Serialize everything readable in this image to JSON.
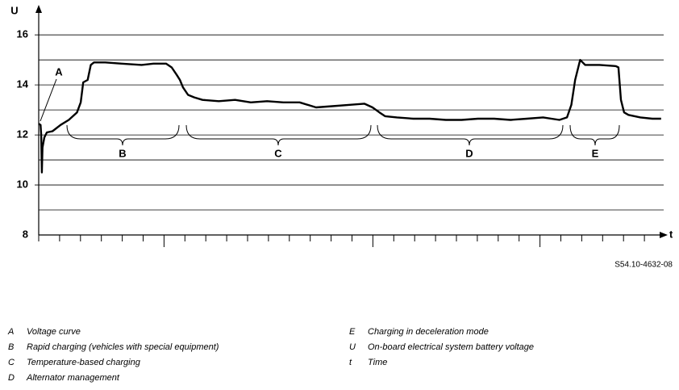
{
  "chart_data": {
    "type": "line",
    "y_label": "U",
    "x_label": "t",
    "ylim": [
      8,
      16.2
    ],
    "yticks": [
      8,
      10,
      12,
      14,
      16
    ],
    "grid_lines": [
      9,
      11,
      13,
      15
    ],
    "xlim": [
      0,
      100
    ],
    "x": [
      0,
      0.3,
      0.4,
      0.5,
      0.6,
      0.9,
      1.3,
      2.2,
      3.5,
      4.8,
      6.1,
      6.7,
      7.1,
      7.8,
      8.3,
      8.8,
      10.6,
      13.2,
      16.4,
      18.3,
      20.3,
      21.2,
      22,
      22.5,
      23,
      23.8,
      24.8,
      26.1,
      28.7,
      31.3,
      33.8,
      36.4,
      39,
      41.6,
      44.2,
      46.8,
      49.4,
      51.9,
      53.2,
      54.3,
      55.2,
      57.1,
      59.7,
      62.3,
      64.9,
      67.4,
      70,
      72.6,
      75.2,
      77.8,
      80.4,
      83,
      84.2,
      84.9,
      85.5,
      86.3,
      87.1,
      89.4,
      92,
      92.4,
      92.8,
      93.3,
      94,
      95.9,
      97.8,
      99.2
    ],
    "series": [
      {
        "name": "Voltage curve",
        "color": "#000000",
        "values": [
          12.45,
          12.4,
          12.0,
          10.5,
          11.5,
          11.9,
          12.1,
          12.15,
          12.4,
          12.6,
          12.9,
          13.3,
          14.1,
          14.2,
          14.8,
          14.9,
          14.9,
          14.85,
          14.8,
          14.85,
          14.85,
          14.7,
          14.4,
          14.2,
          13.9,
          13.6,
          13.5,
          13.4,
          13.35,
          13.4,
          13.3,
          13.35,
          13.3,
          13.3,
          13.1,
          13.15,
          13.2,
          13.25,
          13.1,
          12.9,
          12.75,
          12.7,
          12.65,
          12.65,
          12.6,
          12.6,
          12.65,
          12.65,
          12.6,
          12.65,
          12.7,
          12.6,
          12.7,
          13.2,
          14.2,
          15.0,
          14.8,
          14.8,
          14.75,
          14.7,
          13.4,
          12.9,
          12.8,
          12.7,
          12.65,
          12.65
        ]
      }
    ],
    "annotations": [
      "A",
      "B",
      "C",
      "D",
      "E"
    ],
    "figure_id": "S54.10-4632-08",
    "legend": [
      {
        "key": "A",
        "text": "Voltage curve"
      },
      {
        "key": "B",
        "text": "Rapid charging (vehicles with special equipment)"
      },
      {
        "key": "C",
        "text": "Temperature-based charging"
      },
      {
        "key": "D",
        "text": "Alternator management"
      },
      {
        "key": "E",
        "text": "Charging in deceleration mode"
      },
      {
        "key": "U",
        "text": "On-board electrical system battery voltage"
      },
      {
        "key": "t",
        "text": "Time"
      }
    ]
  }
}
